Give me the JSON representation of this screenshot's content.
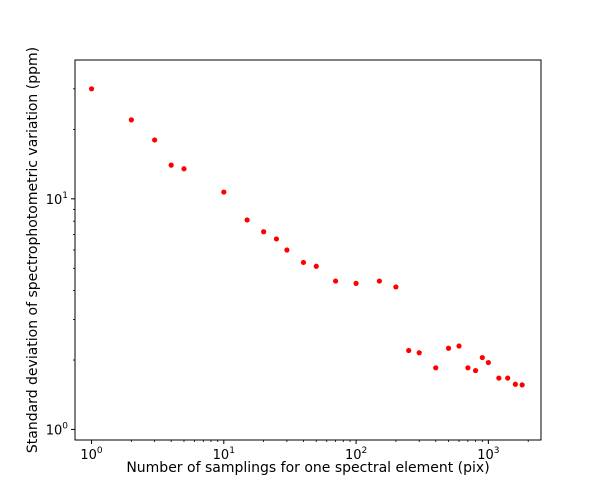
{
  "chart_data": {
    "type": "scatter",
    "xlabel": "Number of samplings for one spectral element (pix)",
    "ylabel": "Standard deviation of spectrophotometric variation (ppm)",
    "xscale": "log",
    "yscale": "log",
    "xlim": [
      0.75,
      2500
    ],
    "ylim": [
      0.9,
      40
    ],
    "grid": false,
    "marker_color": "#ff0000",
    "x_ticks": [
      {
        "value": 1,
        "base": "10",
        "exp": "0"
      },
      {
        "value": 10,
        "base": "10",
        "exp": "1"
      },
      {
        "value": 100,
        "base": "10",
        "exp": "2"
      },
      {
        "value": 1000,
        "base": "10",
        "exp": "3"
      }
    ],
    "y_ticks": [
      {
        "value": 1,
        "base": "10",
        "exp": "0"
      },
      {
        "value": 10,
        "base": "10",
        "exp": "1"
      }
    ],
    "x_minor_ticks": [
      2,
      3,
      4,
      5,
      6,
      7,
      8,
      9,
      20,
      30,
      40,
      50,
      60,
      70,
      80,
      90,
      200,
      300,
      400,
      500,
      600,
      700,
      800,
      900,
      2000
    ],
    "y_minor_ticks": [
      2,
      3,
      4,
      5,
      6,
      7,
      8,
      9,
      20,
      30
    ],
    "points": [
      [
        1,
        30.0
      ],
      [
        2,
        22.0
      ],
      [
        3,
        18.0
      ],
      [
        4,
        14.0
      ],
      [
        5,
        13.5
      ],
      [
        10,
        10.7
      ],
      [
        15,
        8.1
      ],
      [
        20,
        7.2
      ],
      [
        25,
        6.7
      ],
      [
        30,
        6.0
      ],
      [
        40,
        5.3
      ],
      [
        50,
        5.1
      ],
      [
        70,
        4.4
      ],
      [
        100,
        4.3
      ],
      [
        150,
        4.4
      ],
      [
        200,
        4.15
      ],
      [
        250,
        2.2
      ],
      [
        300,
        2.15
      ],
      [
        400,
        1.85
      ],
      [
        500,
        2.25
      ],
      [
        600,
        2.3
      ],
      [
        700,
        1.85
      ],
      [
        800,
        1.8
      ],
      [
        900,
        2.05
      ],
      [
        1000,
        1.95
      ],
      [
        1200,
        1.67
      ],
      [
        1400,
        1.67
      ],
      [
        1600,
        1.57
      ],
      [
        1800,
        1.56
      ]
    ]
  }
}
